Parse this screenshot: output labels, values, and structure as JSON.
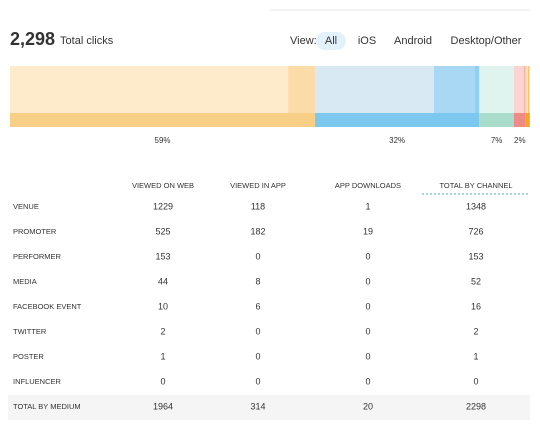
{
  "header": {
    "total": "2,298",
    "label": "Total clicks",
    "view_label": "View:",
    "tabs": [
      "All",
      "iOS",
      "Android",
      "Desktop/Other"
    ],
    "active_tab": 0
  },
  "bar": {
    "labels": [
      "59%",
      "32%",
      "7%",
      "2%"
    ],
    "colors": [
      [
        "#fdebcc",
        "#fbdca8",
        "#f9d394",
        "#f8cf87"
      ],
      [
        "#d8e9f3",
        "#a9d8f5",
        "#8fcff2",
        "#7cc8ef"
      ],
      [
        "#dff4ee",
        "#c9ece1",
        "#b8e3d5",
        "#a9dccb"
      ],
      [
        "#fbd3d3",
        "#f6b2b0",
        "#f29d9a",
        "#ef8b86"
      ],
      [
        "#fde2b3",
        "#f8c56b",
        "#f5b24a",
        "#f5a623"
      ],
      [
        "#e4d9f2",
        "#cbb6e8",
        "#b89ee0",
        "#a78bd6"
      ],
      [
        "#e0e0e0",
        "#c8c8c8",
        "#b4b4b4",
        "#a0a0a0"
      ],
      [
        "#f2e3c8",
        "#e2c695",
        "#d6b37a",
        "#c9a063"
      ]
    ]
  },
  "table": {
    "columns": [
      "VIEWED ON WEB",
      "VIEWED IN APP",
      "APP DOWNLOADS",
      "TOTAL BY CHANNEL"
    ],
    "rows": [
      {
        "label": "VENUE",
        "cells": [
          1229,
          118,
          1,
          1348
        ]
      },
      {
        "label": "PROMOTER",
        "cells": [
          525,
          182,
          19,
          726
        ]
      },
      {
        "label": "PERFORMER",
        "cells": [
          153,
          0,
          0,
          153
        ]
      },
      {
        "label": "MEDIA",
        "cells": [
          44,
          8,
          0,
          52
        ]
      },
      {
        "label": "FACEBOOK EVENT",
        "cells": [
          10,
          6,
          0,
          16
        ]
      },
      {
        "label": "TWITTER",
        "cells": [
          2,
          0,
          0,
          2
        ]
      },
      {
        "label": "POSTER",
        "cells": [
          1,
          0,
          0,
          1
        ]
      },
      {
        "label": "INFLUENCER",
        "cells": [
          0,
          0,
          0,
          0
        ]
      }
    ],
    "footer": {
      "label": "TOTAL BY MEDIUM",
      "cells": [
        1964,
        314,
        20,
        2298
      ]
    }
  }
}
